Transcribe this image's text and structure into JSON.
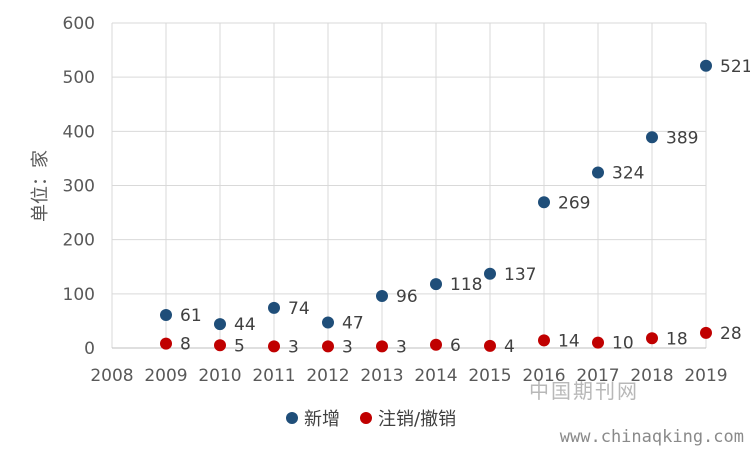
{
  "chart_data": {
    "type": "scatter",
    "title": "",
    "xlabel": "",
    "ylabel": "单位：家",
    "xlim": [
      2008,
      2019
    ],
    "ylim": [
      0,
      600
    ],
    "x_ticks": [
      "2008",
      "2009",
      "2010",
      "2011",
      "2012",
      "2013",
      "2014",
      "2015",
      "2016",
      "2017",
      "2018",
      "2019"
    ],
    "y_ticks": [
      "0",
      "100",
      "200",
      "300",
      "400",
      "500",
      "600"
    ],
    "grid": true,
    "legend_position": "bottom",
    "series": [
      {
        "name": "新增",
        "color": "#1f4e79",
        "x": [
          2009,
          2010,
          2011,
          2012,
          2013,
          2014,
          2015,
          2016,
          2017,
          2018,
          2019
        ],
        "values": [
          61,
          44,
          74,
          47,
          96,
          118,
          137,
          269,
          324,
          389,
          521
        ]
      },
      {
        "name": "注销/撤销",
        "color": "#c00000",
        "x": [
          2009,
          2010,
          2011,
          2012,
          2013,
          2014,
          2015,
          2016,
          2017,
          2018,
          2019
        ],
        "values": [
          8,
          5,
          3,
          3,
          3,
          6,
          4,
          14,
          10,
          18,
          28
        ]
      }
    ]
  },
  "watermark": {
    "line1": "中国期刊网",
    "line2": "www.chinaqking.com"
  }
}
